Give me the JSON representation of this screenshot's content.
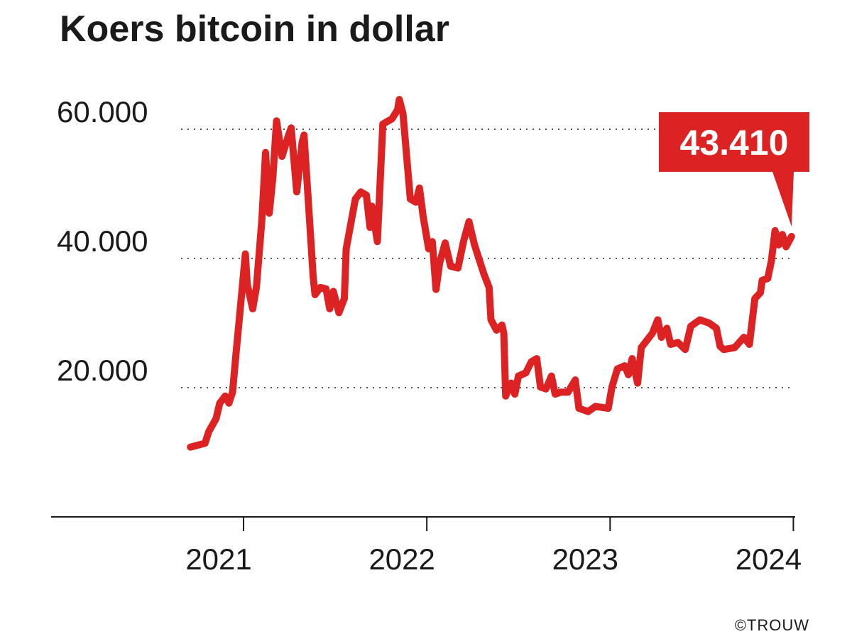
{
  "chart_data": {
    "type": "line",
    "title": "Koers bitcoin in dollar",
    "credit": "©TROUW",
    "annotation": "43.410",
    "color": "#dc2222",
    "grid": true,
    "xlim": [
      2019.95,
      2024.01
    ],
    "xticks": [
      2021,
      2022,
      2023,
      2024
    ],
    "ylim": [
      0,
      70000
    ],
    "yticks": [
      {
        "value": 20000,
        "label": "20.000"
      },
      {
        "value": 40000,
        "label": "40.000"
      },
      {
        "value": 60000,
        "label": "60.000"
      }
    ],
    "x": [
      2020.71,
      2020.79,
      2020.81,
      2020.85,
      2020.87,
      2020.9,
      2020.92,
      2020.94,
      2020.96,
      2020.98,
      2021.01,
      2021.02,
      2021.05,
      2021.07,
      2021.1,
      2021.12,
      2021.14,
      2021.16,
      2021.18,
      2021.21,
      2021.24,
      2021.26,
      2021.29,
      2021.32,
      2021.33,
      2021.36,
      2021.38,
      2021.39,
      2021.42,
      2021.45,
      2021.47,
      2021.49,
      2021.52,
      2021.55,
      2021.56,
      2021.61,
      2021.64,
      2021.67,
      2021.69,
      2021.7,
      2021.73,
      2021.76,
      2021.81,
      2021.84,
      2021.85,
      2021.87,
      2021.91,
      2021.94,
      2021.96,
      2021.98,
      2022.01,
      2022.03,
      2022.05,
      2022.07,
      2022.1,
      2022.13,
      2022.17,
      2022.2,
      2022.23,
      2022.26,
      2022.31,
      2022.34,
      2022.35,
      2022.38,
      2022.41,
      2022.42,
      2022.43,
      2022.46,
      2022.48,
      2022.5,
      2022.54,
      2022.57,
      2022.6,
      2022.62,
      2022.65,
      2022.68,
      2022.7,
      2022.73,
      2022.77,
      2022.81,
      2022.83,
      2022.88,
      2022.92,
      2022.99,
      2023.01,
      2023.04,
      2023.08,
      2023.1,
      2023.12,
      2023.15,
      2023.17,
      2023.2,
      2023.23,
      2023.26,
      2023.28,
      2023.31,
      2023.33,
      2023.37,
      2023.41,
      2023.44,
      2023.49,
      2023.54,
      2023.58,
      2023.6,
      2023.62,
      2023.68,
      2023.73,
      2023.76,
      2023.79,
      2023.82,
      2023.83,
      2023.86,
      2023.88,
      2023.9,
      2023.92,
      2023.94,
      2023.96,
      2023.99
    ],
    "values": [
      10800,
      11400,
      13200,
      15200,
      17600,
      18700,
      17600,
      19300,
      25600,
      31600,
      40700,
      36000,
      32200,
      35500,
      45900,
      56400,
      47000,
      52500,
      61300,
      55800,
      58600,
      60200,
      50300,
      58000,
      59100,
      45900,
      37100,
      34400,
      35500,
      35300,
      32200,
      34900,
      31600,
      33800,
      41500,
      49200,
      50300,
      49800,
      44800,
      48100,
      42600,
      60800,
      61600,
      63000,
      64600,
      62400,
      49200,
      48700,
      50900,
      46500,
      41500,
      42600,
      35200,
      39300,
      42400,
      38800,
      38500,
      42600,
      45700,
      42100,
      37700,
      35500,
      30500,
      28900,
      29700,
      28400,
      18700,
      20700,
      19000,
      21800,
      22300,
      24000,
      24500,
      20100,
      19800,
      21800,
      19000,
      19300,
      19300,
      21200,
      16800,
      16300,
      17100,
      16800,
      20100,
      22900,
      23400,
      22000,
      24500,
      20700,
      26200,
      27300,
      28400,
      30500,
      27800,
      29200,
      26700,
      27000,
      25900,
      29500,
      30500,
      30000,
      29200,
      26400,
      25900,
      26200,
      27800,
      26700,
      33800,
      34700,
      36600,
      36900,
      39600,
      44300,
      42100,
      43700,
      41800,
      43410
    ]
  }
}
